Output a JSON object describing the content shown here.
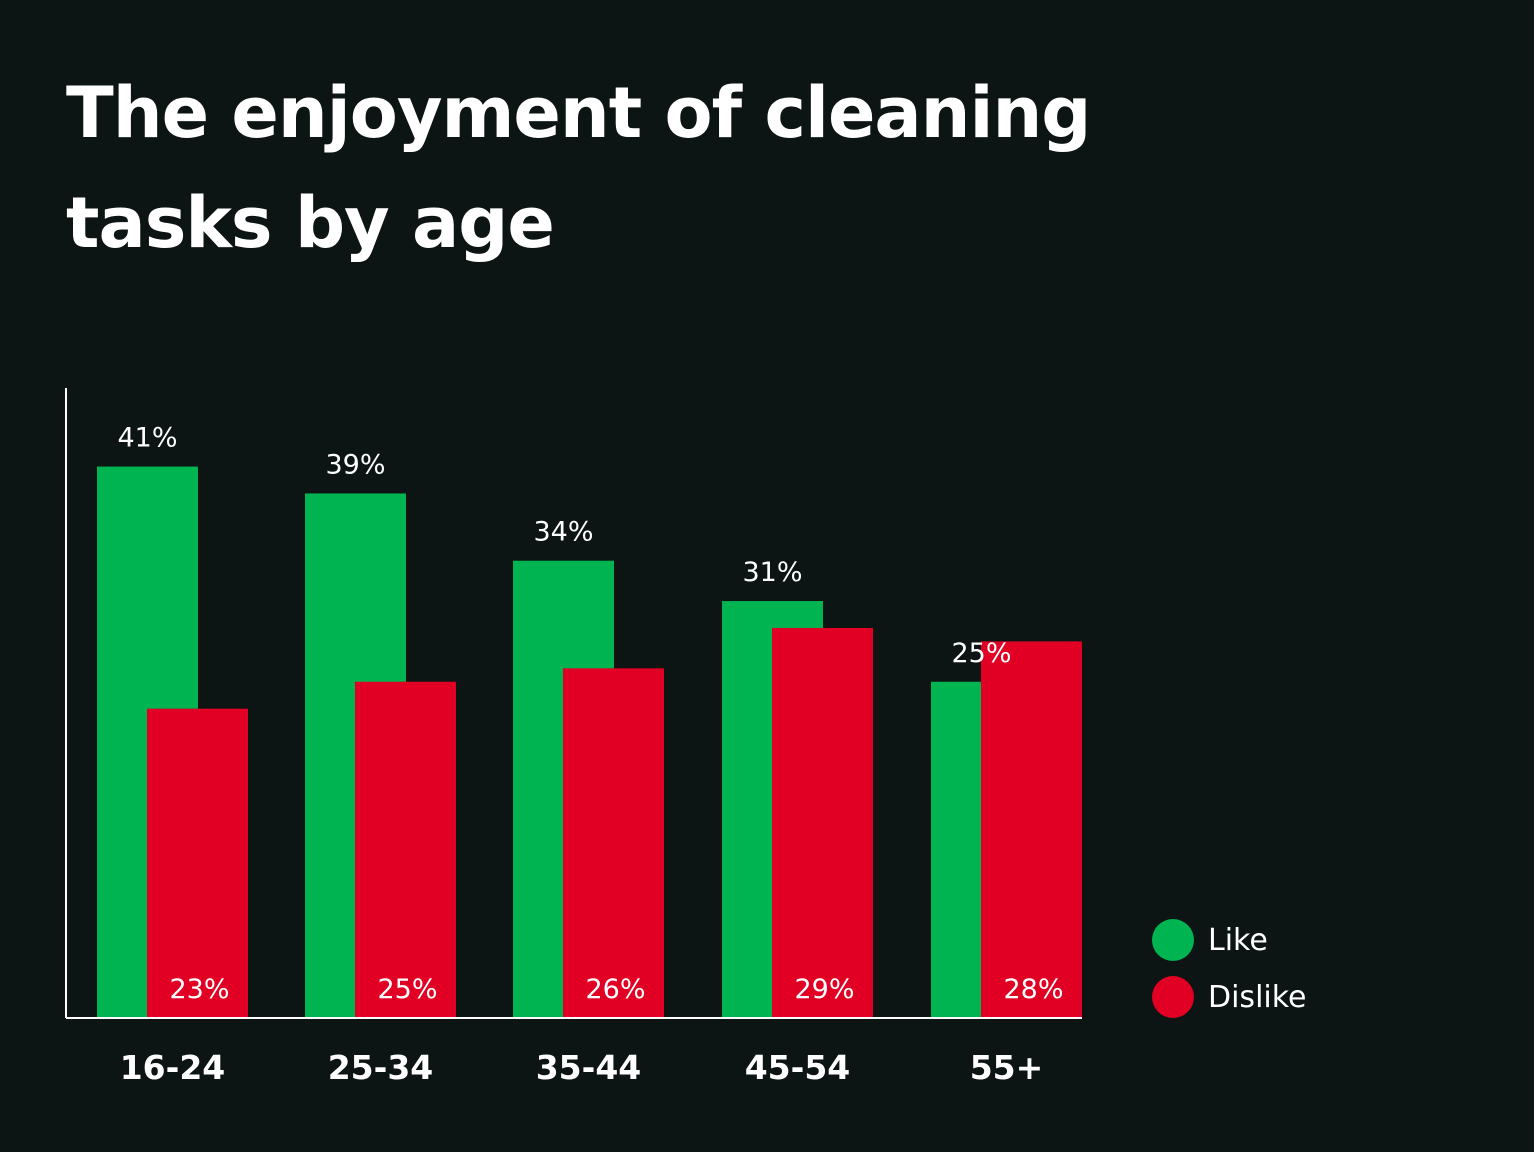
{
  "chart_data": {
    "type": "bar",
    "title": "The enjoyment of cleaning tasks by age",
    "xlabel": "",
    "ylabel": "",
    "categories": [
      "16-24",
      "25-34",
      "35-44",
      "45-54",
      "55+"
    ],
    "series": [
      {
        "name": "Like",
        "values": [
          41,
          39,
          34,
          31,
          25
        ],
        "labels": [
          "41%",
          "39%",
          "34%",
          "31%",
          "25%"
        ],
        "color": "#00b451"
      },
      {
        "name": "Dislike",
        "values": [
          23,
          25,
          26,
          29,
          28
        ],
        "labels": [
          "23%",
          "25%",
          "26%",
          "29%",
          "28%"
        ],
        "color": "#e10024"
      }
    ],
    "ylim": [
      0,
      47
    ],
    "grid": false,
    "legend_position": "bottom-right",
    "background": "#0c1414",
    "text_color": "#ffffff"
  }
}
